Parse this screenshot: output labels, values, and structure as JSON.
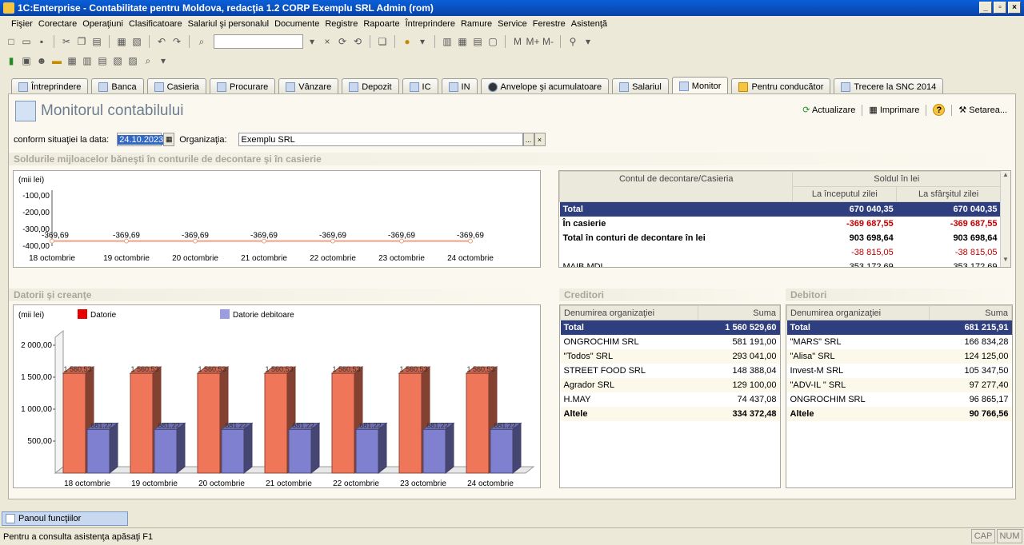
{
  "window": {
    "title": "1C:Enterprise - Contabilitate pentru  Moldova, redacţia 1.2 CORP Exemplu SRL Admin (rom)",
    "min_label": "_",
    "max_label": "▫",
    "close_label": "×"
  },
  "menu": [
    "Fişier",
    "Corectare",
    "Operaţiuni",
    "Clasificatoare",
    "Salariul şi personalul",
    "Documente",
    "Registre",
    "Rapoarte",
    "Întreprindere",
    "Ramure",
    "Service",
    "Ferestre",
    "Asistenţă"
  ],
  "toolbar": {
    "m_label": "M",
    "mplus_label": "M+",
    "mminus_label": "M-"
  },
  "tabs": [
    "Întreprindere",
    "Banca",
    "Casieria",
    "Procurare",
    "Vânzare",
    "Depozit",
    "IC",
    "IN",
    "Anvelope şi acumulatoare",
    "Salariul",
    "Monitor",
    "Pentru conducător",
    "Trecere la SNC 2014"
  ],
  "active_tab": "Monitor",
  "page": {
    "title": "Monitorul contabilului",
    "actions": {
      "refresh": "Actualizare",
      "print": "Imprimare",
      "help": "?",
      "settings": "Setarea..."
    }
  },
  "filter": {
    "date_label": "conform situaţiei la data:",
    "date_value": "24.10.2023",
    "org_label": "Organizaţia:",
    "org_value": "Exemplu SRL",
    "select_btn": "...",
    "clear_btn": "×"
  },
  "cash_section": {
    "title": "Soldurile mijloacelor băneşti în conturile de decontare şi în casierie",
    "chart_unit": "(mii lei)",
    "y_ticks": [
      "-100,00",
      "-200,00",
      "-300,00",
      "-400,00"
    ],
    "table": {
      "col_account": "Contul de decontare/Casieria",
      "col_balance": "Soldul în lei",
      "col_start": "La începutul zilei",
      "col_end": "La sfârşitul zilei",
      "rows": [
        {
          "name": "Total",
          "start": "670 040,35",
          "end": "670 040,35"
        },
        {
          "name": "În casierie",
          "start": "-369 687,55",
          "end": "-369 687,55"
        },
        {
          "name": "Total în conturi de decontare în lei",
          "start": "903 698,64",
          "end": "903 698,64"
        },
        {
          "name": "",
          "start": "-38 815,05",
          "end": "-38 815,05"
        },
        {
          "name": "MAIB MDL",
          "start": "353 172,69",
          "end": "353 172,69"
        }
      ]
    }
  },
  "debts_section": {
    "title": "Datorii şi creanţe",
    "chart_unit": "(mii lei)",
    "legend_debt": "Datorie",
    "legend_receivable": "Datorie debitoare",
    "y_ticks": [
      "2 000,00",
      "1 500,00",
      "1 000,00",
      "500,00"
    ]
  },
  "creditors": {
    "title": "Creditori",
    "col_name": "Denumirea organizaţiei",
    "col_sum": "Suma",
    "total_label": "Total",
    "total_value": "1 560 529,60",
    "rows": [
      {
        "name": "ONGROCHIM SRL",
        "sum": "581 191,00"
      },
      {
        "name": "\"Todos\" SRL",
        "sum": "293 041,00"
      },
      {
        "name": "STREET FOOD SRL",
        "sum": "148 388,04"
      },
      {
        "name": "Agrador SRL",
        "sum": "129 100,00"
      },
      {
        "name": "H.MAY",
        "sum": "74 437,08"
      }
    ],
    "other_label": "Altele",
    "other_value": "334 372,48"
  },
  "debtors": {
    "title": "Debitori",
    "col_name": "Denumirea organizaţiei",
    "col_sum": "Suma",
    "total_label": "Total",
    "total_value": "681 215,91",
    "rows": [
      {
        "name": "\"MARS\" SRL",
        "sum": "166 834,28"
      },
      {
        "name": "\"Alisa\" SRL",
        "sum": "124 125,00"
      },
      {
        "name": "Invest-M SRL",
        "sum": "105 347,50"
      },
      {
        "name": "\"ADV-IL \" SRL",
        "sum": "97 277,40"
      },
      {
        "name": "ONGROCHIM SRL",
        "sum": "96 865,17"
      }
    ],
    "other_label": "Altele",
    "other_value": "90 766,56"
  },
  "footer": {
    "panel": "Panoul funcţiilor",
    "status": "Pentru a consulta asistenţa apăsaţi F1",
    "cap": "CAP",
    "num": "NUM"
  },
  "chart_data": [
    {
      "type": "line",
      "x": [
        "18 octombrie",
        "19 octombrie",
        "20 octombrie",
        "21 octombrie",
        "22 octombrie",
        "23 octombrie",
        "24 octombrie"
      ],
      "series": [
        {
          "values": [
            -369.69,
            -369.69,
            -369.69,
            -369.69,
            -369.69,
            -369.69,
            -369.69
          ]
        }
      ],
      "data_labels": [
        "-369,69",
        "-369,69",
        "-369,69",
        "-369,69",
        "-369,69",
        "-369,69",
        "-369,69"
      ],
      "ylim": [
        -400,
        0
      ],
      "ylabel": "(mii lei)",
      "color": "#f0a080"
    },
    {
      "type": "bar",
      "categories": [
        "18 octombrie",
        "19 octombrie",
        "20 octombrie",
        "21 octombrie",
        "22 octombrie",
        "23 octombrie",
        "24 octombrie"
      ],
      "series": [
        {
          "name": "Datorie",
          "values": [
            1560.53,
            1560.53,
            1560.53,
            1560.53,
            1560.53,
            1560.53,
            1560.53
          ],
          "labels": [
            "1 560,53",
            "1 560,53",
            "1 560,53",
            "1 560,53",
            "1 560,53",
            "1 560,53",
            "1 560,53"
          ],
          "color": "#f0765a"
        },
        {
          "name": "Datorie debitoare",
          "values": [
            681.22,
            681.22,
            681.22,
            681.22,
            681.22,
            681.22,
            681.22
          ],
          "labels": [
            "681,22",
            "681,22",
            "681,22",
            "681,22",
            "681,22",
            "681,22",
            "681,22"
          ],
          "color": "#8080d0"
        }
      ],
      "ylim": [
        0,
        2000
      ],
      "ylabel": "(mii lei)",
      "legend": "top"
    }
  ]
}
